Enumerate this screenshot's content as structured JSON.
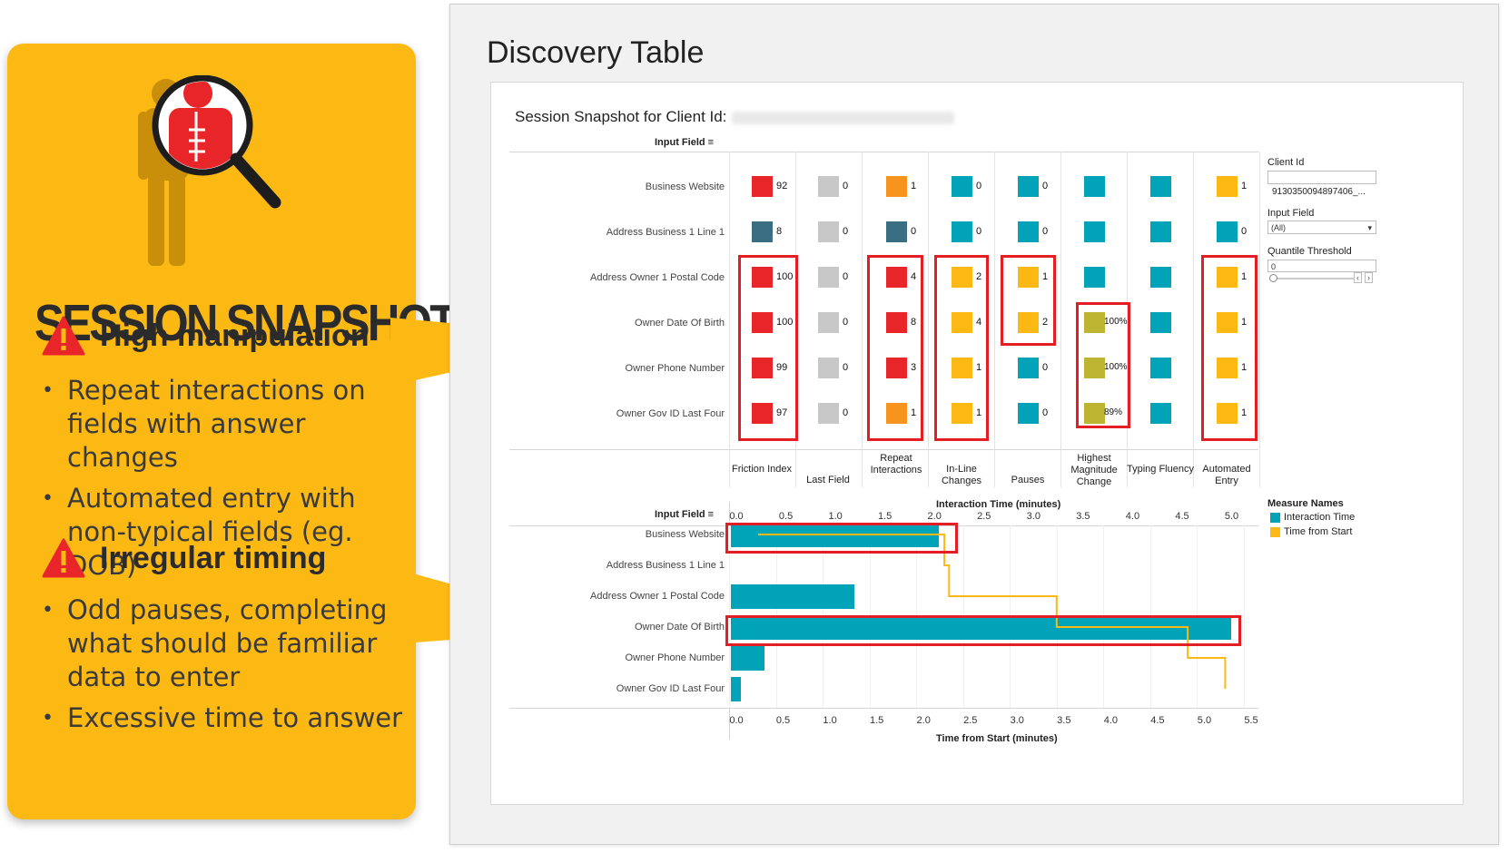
{
  "left_card": {
    "title": "SESSION SNAPSHOT",
    "sections": [
      {
        "heading": "High manipulation",
        "bullets": [
          "Repeat interactions on fields with answer changes",
          "Automated entry with non-typical fields (eg. DOB)"
        ]
      },
      {
        "heading": "Irregular timing",
        "bullets": [
          "Odd pauses, completing what should be familiar data to enter",
          "Excessive time to answer"
        ]
      }
    ]
  },
  "panel": {
    "title": "Discovery Table",
    "snapshot_label": "Session Snapshot for Client Id:",
    "input_field_header": "Input Field",
    "row_labels": [
      "Business Website",
      "Address Business 1 Line 1",
      "Address Owner 1 Postal Code",
      "Owner Date Of Birth",
      "Owner Phone Number",
      "Owner Gov ID Last Four"
    ],
    "columns": [
      "Friction Index",
      "Last Field",
      "Repeat Interactions",
      "In-Line Changes",
      "Pauses",
      "Highest Magnitude Change",
      "Typing Fluency",
      "Automated Entry"
    ],
    "cells": [
      [
        {
          "c": "#E8262A",
          "v": "92"
        },
        {
          "c": "#C8C8C8",
          "v": "0"
        },
        {
          "c": "#F7941D",
          "v": "1"
        },
        {
          "c": "#00A3B7",
          "v": "0"
        },
        {
          "c": "#00A3B7",
          "v": "0"
        },
        {
          "c": "#00A3B7",
          "v": ""
        },
        {
          "c": "#00A3B7",
          "v": ""
        },
        {
          "c": "#FDB913",
          "v": "1"
        }
      ],
      [
        {
          "c": "#3A6F83",
          "v": "8"
        },
        {
          "c": "#C8C8C8",
          "v": "0"
        },
        {
          "c": "#3A6F83",
          "v": "0"
        },
        {
          "c": "#00A3B7",
          "v": "0"
        },
        {
          "c": "#00A3B7",
          "v": "0"
        },
        {
          "c": "#00A3B7",
          "v": ""
        },
        {
          "c": "#00A3B7",
          "v": ""
        },
        {
          "c": "#00A3B7",
          "v": "0"
        }
      ],
      [
        {
          "c": "#E8262A",
          "v": "100"
        },
        {
          "c": "#C8C8C8",
          "v": "0"
        },
        {
          "c": "#E8262A",
          "v": "4"
        },
        {
          "c": "#FDB913",
          "v": "2"
        },
        {
          "c": "#FDB913",
          "v": "1"
        },
        {
          "c": "#00A3B7",
          "v": ""
        },
        {
          "c": "#00A3B7",
          "v": ""
        },
        {
          "c": "#FDB913",
          "v": "1"
        }
      ],
      [
        {
          "c": "#E8262A",
          "v": "100"
        },
        {
          "c": "#C8C8C8",
          "v": "0"
        },
        {
          "c": "#E8262A",
          "v": "8"
        },
        {
          "c": "#FDB913",
          "v": "4"
        },
        {
          "c": "#FDB913",
          "v": "2"
        },
        {
          "c": "#BDB431",
          "v": "100%"
        },
        {
          "c": "#00A3B7",
          "v": ""
        },
        {
          "c": "#FDB913",
          "v": "1"
        }
      ],
      [
        {
          "c": "#E8262A",
          "v": "99"
        },
        {
          "c": "#C8C8C8",
          "v": "0"
        },
        {
          "c": "#E8262A",
          "v": "3"
        },
        {
          "c": "#FDB913",
          "v": "1"
        },
        {
          "c": "#00A3B7",
          "v": "0"
        },
        {
          "c": "#BDB431",
          "v": "100%"
        },
        {
          "c": "#00A3B7",
          "v": ""
        },
        {
          "c": "#FDB913",
          "v": "1"
        }
      ],
      [
        {
          "c": "#E8262A",
          "v": "97"
        },
        {
          "c": "#C8C8C8",
          "v": "0"
        },
        {
          "c": "#F7941D",
          "v": "1"
        },
        {
          "c": "#FDB913",
          "v": "1"
        },
        {
          "c": "#00A3B7",
          "v": "0"
        },
        {
          "c": "#BDB431",
          "v": "89%"
        },
        {
          "c": "#00A3B7",
          "v": ""
        },
        {
          "c": "#FDB913",
          "v": "1"
        }
      ]
    ],
    "filters": {
      "client_id_label": "Client Id",
      "client_id_value": "9130350094897406_...",
      "input_field_label": "Input Field",
      "input_field_value": "(All)",
      "quantile_label": "Quantile Threshold",
      "quantile_value": "0"
    },
    "legend": {
      "title": "Measure Names",
      "items": [
        {
          "name": "Interaction Time",
          "color": "#00A3B7"
        },
        {
          "name": "Time from Start",
          "color": "#FDB913"
        }
      ]
    }
  },
  "chart_data": {
    "type": "bar",
    "top_axis_label": "Interaction Time (minutes)",
    "bottom_axis_label": "Time from Start (minutes)",
    "top_ticks": [
      "0.0",
      "0.5",
      "1.0",
      "1.5",
      "2.0",
      "2.5",
      "3.0",
      "3.5",
      "4.0",
      "4.5",
      "5.0"
    ],
    "bottom_ticks": [
      "0.0",
      "0.5",
      "1.0",
      "1.5",
      "2.0",
      "2.5",
      "3.0",
      "3.5",
      "4.0",
      "4.5",
      "5.0",
      "5.5"
    ],
    "categories": [
      "Business Website",
      "Address Business 1 Line 1",
      "Address Owner 1 Postal Code",
      "Owner Date Of Birth",
      "Owner Phone Number",
      "Owner Gov ID Last Four"
    ],
    "series": [
      {
        "name": "Interaction Time",
        "values": [
          2.1,
          0.0,
          1.25,
          5.05,
          0.34,
          0.1
        ]
      },
      {
        "name": "Time from Start",
        "values": [
          2.3,
          2.35,
          3.5,
          4.9,
          5.3,
          5.3
        ]
      }
    ],
    "interaction_xlim": [
      0,
      5.05
    ],
    "start_xlim": [
      0,
      5.5
    ]
  }
}
